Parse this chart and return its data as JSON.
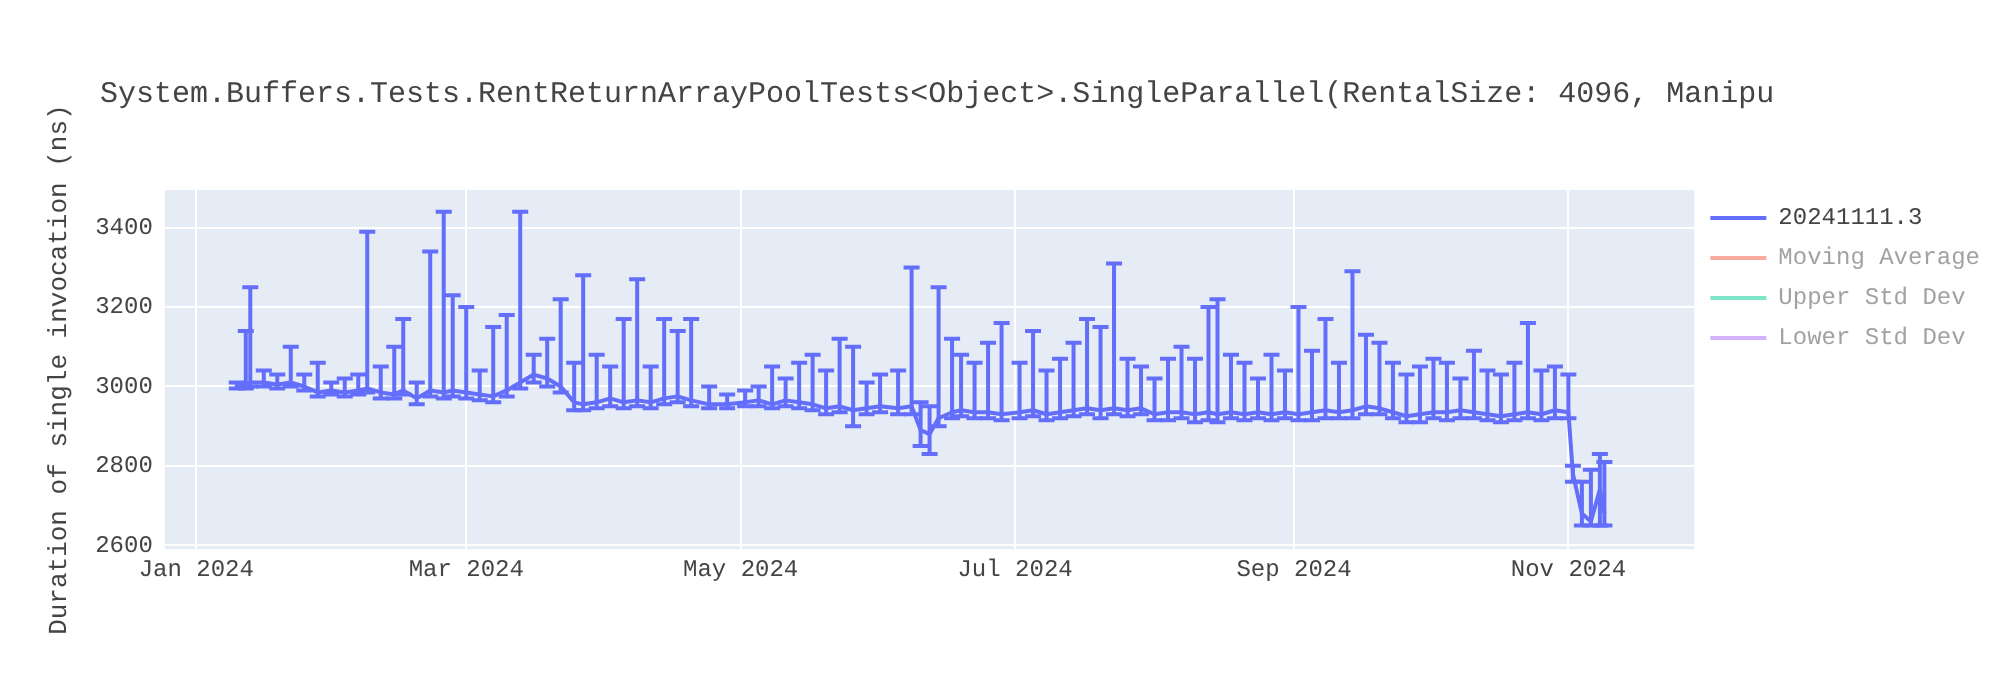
{
  "chart_data": {
    "type": "line",
    "title": "System.Buffers.Tests.RentReturnArrayPoolTests<Object>.SingleParallel(RentalSize: 4096, Manipu",
    "ylabel": "Duration of single invocation (ns)",
    "xlim": [
      "2023-12-25",
      "2024-11-29"
    ],
    "xticks": [
      {
        "value": "2024-01-01",
        "label": "Jan 2024"
      },
      {
        "value": "2024-03-01",
        "label": "Mar 2024"
      },
      {
        "value": "2024-05-01",
        "label": "May 2024"
      },
      {
        "value": "2024-07-01",
        "label": "Jul 2024"
      },
      {
        "value": "2024-09-01",
        "label": "Sep 2024"
      },
      {
        "value": "2024-11-01",
        "label": "Nov 2024"
      }
    ],
    "ylim": [
      2590,
      3495
    ],
    "yticks": [
      2600,
      2800,
      3000,
      3200,
      3400
    ],
    "grid": true,
    "legend": "top right",
    "marker": "none",
    "line_style": "solid",
    "x": [
      "2024-01-10",
      "2024-01-12",
      "2024-01-13",
      "2024-01-16",
      "2024-01-19",
      "2024-01-22",
      "2024-01-25",
      "2024-01-28",
      "2024-01-31",
      "2024-02-03",
      "2024-02-06",
      "2024-02-08",
      "2024-02-11",
      "2024-02-14",
      "2024-02-16",
      "2024-02-19",
      "2024-02-22",
      "2024-02-25",
      "2024-02-27",
      "2024-03-01",
      "2024-03-04",
      "2024-03-07",
      "2024-03-10",
      "2024-03-13",
      "2024-03-16",
      "2024-03-19",
      "2024-03-22",
      "2024-03-25",
      "2024-03-27",
      "2024-03-30",
      "2024-04-02",
      "2024-04-05",
      "2024-04-08",
      "2024-04-11",
      "2024-04-14",
      "2024-04-17",
      "2024-04-20",
      "2024-04-24",
      "2024-04-28",
      "2024-05-02",
      "2024-05-05",
      "2024-05-08",
      "2024-05-11",
      "2024-05-14",
      "2024-05-17",
      "2024-05-20",
      "2024-05-23",
      "2024-05-26",
      "2024-05-29",
      "2024-06-01",
      "2024-06-05",
      "2024-06-08",
      "2024-06-10",
      "2024-06-12",
      "2024-06-14",
      "2024-06-17",
      "2024-06-19",
      "2024-06-22",
      "2024-06-25",
      "2024-06-28",
      "2024-07-02",
      "2024-07-05",
      "2024-07-08",
      "2024-07-11",
      "2024-07-14",
      "2024-07-17",
      "2024-07-20",
      "2024-07-23",
      "2024-07-26",
      "2024-07-29",
      "2024-08-01",
      "2024-08-04",
      "2024-08-07",
      "2024-08-10",
      "2024-08-13",
      "2024-08-15",
      "2024-08-18",
      "2024-08-21",
      "2024-08-24",
      "2024-08-27",
      "2024-08-30",
      "2024-09-02",
      "2024-09-05",
      "2024-09-08",
      "2024-09-11",
      "2024-09-14",
      "2024-09-17",
      "2024-09-20",
      "2024-09-23",
      "2024-09-26",
      "2024-09-29",
      "2024-10-02",
      "2024-10-05",
      "2024-10-08",
      "2024-10-11",
      "2024-10-14",
      "2024-10-17",
      "2024-10-20",
      "2024-10-23",
      "2024-10-26",
      "2024-10-29",
      "2024-11-01",
      "2024-11-02",
      "2024-11-04",
      "2024-11-06",
      "2024-11-08",
      "2024-11-09"
    ],
    "series": [
      {
        "name": "20241111.3",
        "color": "#636efa",
        "values": [
          3000,
          3005,
          3010,
          3010,
          3005,
          3010,
          3000,
          2985,
          2990,
          2985,
          2990,
          2995,
          2985,
          2980,
          2990,
          2970,
          2990,
          2985,
          2990,
          2985,
          2980,
          2975,
          2990,
          3010,
          3030,
          3020,
          3000,
          2960,
          2955,
          2960,
          2970,
          2960,
          2965,
          2960,
          2970,
          2975,
          2965,
          2955,
          2955,
          2960,
          2965,
          2955,
          2965,
          2960,
          2955,
          2945,
          2950,
          2940,
          2945,
          2950,
          2945,
          2950,
          2890,
          2880,
          2920,
          2935,
          2940,
          2935,
          2935,
          2930,
          2935,
          2940,
          2930,
          2935,
          2940,
          2945,
          2940,
          2945,
          2940,
          2945,
          2930,
          2935,
          2935,
          2930,
          2935,
          2930,
          2935,
          2930,
          2935,
          2930,
          2935,
          2930,
          2935,
          2940,
          2935,
          2940,
          2950,
          2945,
          2935,
          2925,
          2930,
          2935,
          2935,
          2940,
          2935,
          2930,
          2925,
          2930,
          2935,
          2930,
          2940,
          2935,
          2780,
          2680,
          2660,
          2740,
          2680
        ],
        "errors": [
          [
            2995,
            3010
          ],
          [
            2995,
            3140
          ],
          [
            3000,
            3250
          ],
          [
            3000,
            3040
          ],
          [
            2995,
            3030
          ],
          [
            3000,
            3100
          ],
          [
            2990,
            3030
          ],
          [
            2975,
            3060
          ],
          [
            2980,
            3010
          ],
          [
            2975,
            3020
          ],
          [
            2980,
            3030
          ],
          [
            2985,
            3390
          ],
          [
            2970,
            3050
          ],
          [
            2970,
            3100
          ],
          [
            2980,
            3170
          ],
          [
            2955,
            3010
          ],
          [
            2975,
            3340
          ],
          [
            2970,
            3440
          ],
          [
            2975,
            3230
          ],
          [
            2970,
            3200
          ],
          [
            2965,
            3040
          ],
          [
            2960,
            3150
          ],
          [
            2975,
            3180
          ],
          [
            2995,
            3440
          ],
          [
            3010,
            3080
          ],
          [
            3000,
            3120
          ],
          [
            2985,
            3220
          ],
          [
            2940,
            3060
          ],
          [
            2940,
            3280
          ],
          [
            2945,
            3080
          ],
          [
            2950,
            3050
          ],
          [
            2945,
            3170
          ],
          [
            2950,
            3270
          ],
          [
            2945,
            3050
          ],
          [
            2955,
            3170
          ],
          [
            2960,
            3140
          ],
          [
            2950,
            3170
          ],
          [
            2945,
            3000
          ],
          [
            2945,
            2980
          ],
          [
            2950,
            2990
          ],
          [
            2950,
            3000
          ],
          [
            2945,
            3050
          ],
          [
            2950,
            3020
          ],
          [
            2945,
            3060
          ],
          [
            2940,
            3080
          ],
          [
            2930,
            3040
          ],
          [
            2935,
            3120
          ],
          [
            2900,
            3100
          ],
          [
            2930,
            3010
          ],
          [
            2935,
            3030
          ],
          [
            2930,
            3040
          ],
          [
            2930,
            3300
          ],
          [
            2850,
            2960
          ],
          [
            2830,
            2950
          ],
          [
            2900,
            3250
          ],
          [
            2920,
            3120
          ],
          [
            2925,
            3080
          ],
          [
            2920,
            3060
          ],
          [
            2920,
            3110
          ],
          [
            2915,
            3160
          ],
          [
            2920,
            3060
          ],
          [
            2925,
            3140
          ],
          [
            2915,
            3040
          ],
          [
            2920,
            3070
          ],
          [
            2925,
            3110
          ],
          [
            2930,
            3170
          ],
          [
            2920,
            3150
          ],
          [
            2930,
            3310
          ],
          [
            2925,
            3070
          ],
          [
            2930,
            3050
          ],
          [
            2915,
            3020
          ],
          [
            2915,
            3070
          ],
          [
            2920,
            3100
          ],
          [
            2910,
            3070
          ],
          [
            2915,
            3200
          ],
          [
            2910,
            3220
          ],
          [
            2920,
            3080
          ],
          [
            2915,
            3060
          ],
          [
            2920,
            3020
          ],
          [
            2915,
            3080
          ],
          [
            2920,
            3040
          ],
          [
            2915,
            3200
          ],
          [
            2915,
            3090
          ],
          [
            2920,
            3170
          ],
          [
            2920,
            3060
          ],
          [
            2920,
            3290
          ],
          [
            2930,
            3130
          ],
          [
            2930,
            3110
          ],
          [
            2920,
            3060
          ],
          [
            2910,
            3030
          ],
          [
            2910,
            3050
          ],
          [
            2920,
            3070
          ],
          [
            2915,
            3060
          ],
          [
            2920,
            3020
          ],
          [
            2920,
            3090
          ],
          [
            2915,
            3040
          ],
          [
            2910,
            3030
          ],
          [
            2915,
            3060
          ],
          [
            2920,
            3160
          ],
          [
            2915,
            3040
          ],
          [
            2920,
            3050
          ],
          [
            2920,
            3030
          ],
          [
            2760,
            2800
          ],
          [
            2650,
            2760
          ],
          [
            2650,
            2790
          ],
          [
            2650,
            2830
          ],
          [
            2650,
            2810
          ]
        ]
      },
      {
        "name": "Moving Average",
        "color": "#ef553b",
        "values": [
          null,
          null,
          null,
          null,
          null,
          null,
          null,
          null,
          null,
          null,
          null,
          null,
          null,
          null,
          null,
          null,
          null,
          null,
          null,
          null,
          null,
          null,
          null,
          null,
          null,
          null,
          null,
          null,
          null,
          null,
          null,
          null,
          null,
          null,
          null,
          null,
          null,
          null,
          null,
          null,
          null,
          null,
          null,
          null,
          null,
          null,
          null,
          null,
          null,
          null,
          null,
          null,
          null,
          null,
          null,
          null,
          null,
          null,
          null,
          null,
          null,
          null,
          null,
          null,
          null,
          null,
          null,
          null,
          null,
          null,
          null,
          null,
          null,
          null,
          null,
          null,
          null,
          null,
          null,
          null,
          null,
          null,
          null,
          null,
          null,
          null,
          null,
          null,
          null,
          null,
          null,
          null,
          null,
          null,
          null,
          null,
          null,
          null,
          null,
          null,
          null,
          null,
          null,
          null,
          null,
          null,
          null
        ]
      },
      {
        "name": "Upper Std Dev",
        "color": "#00cc96",
        "values": [
          null,
          null,
          null,
          null,
          null,
          null,
          null,
          null,
          null,
          null,
          null,
          null,
          null,
          null,
          null,
          null,
          null,
          null,
          null,
          null,
          null,
          null,
          null,
          null,
          null,
          null,
          null,
          null,
          null,
          null,
          null,
          null,
          null,
          null,
          null,
          null,
          null,
          null,
          null,
          null,
          null,
          null,
          null,
          null,
          null,
          null,
          null,
          null,
          null,
          null,
          null,
          null,
          null,
          null,
          null,
          null,
          null,
          null,
          null,
          null,
          null,
          null,
          null,
          null,
          null,
          null,
          null,
          null,
          null,
          null,
          null,
          null,
          null,
          null,
          null,
          null,
          null,
          null,
          null,
          null,
          null,
          null,
          null,
          null,
          null,
          null,
          null,
          null,
          null,
          null,
          null,
          null,
          null,
          null,
          null,
          null,
          null,
          null,
          null,
          null,
          null,
          null,
          null,
          null,
          null,
          null,
          null
        ]
      },
      {
        "name": "Lower Std Dev",
        "color": "#ab63fa",
        "values": [
          null,
          null,
          null,
          null,
          null,
          null,
          null,
          null,
          null,
          null,
          null,
          null,
          null,
          null,
          null,
          null,
          null,
          null,
          null,
          null,
          null,
          null,
          null,
          null,
          null,
          null,
          null,
          null,
          null,
          null,
          null,
          null,
          null,
          null,
          null,
          null,
          null,
          null,
          null,
          null,
          null,
          null,
          null,
          null,
          null,
          null,
          null,
          null,
          null,
          null,
          null,
          null,
          null,
          null,
          null,
          null,
          null,
          null,
          null,
          null,
          null,
          null,
          null,
          null,
          null,
          null,
          null,
          null,
          null,
          null,
          null,
          null,
          null,
          null,
          null,
          null,
          null,
          null,
          null,
          null,
          null,
          null,
          null,
          null,
          null,
          null,
          null,
          null,
          null,
          null,
          null,
          null,
          null,
          null,
          null,
          null,
          null,
          null,
          null,
          null,
          null,
          null,
          null,
          null,
          null,
          null,
          null
        ]
      }
    ]
  }
}
